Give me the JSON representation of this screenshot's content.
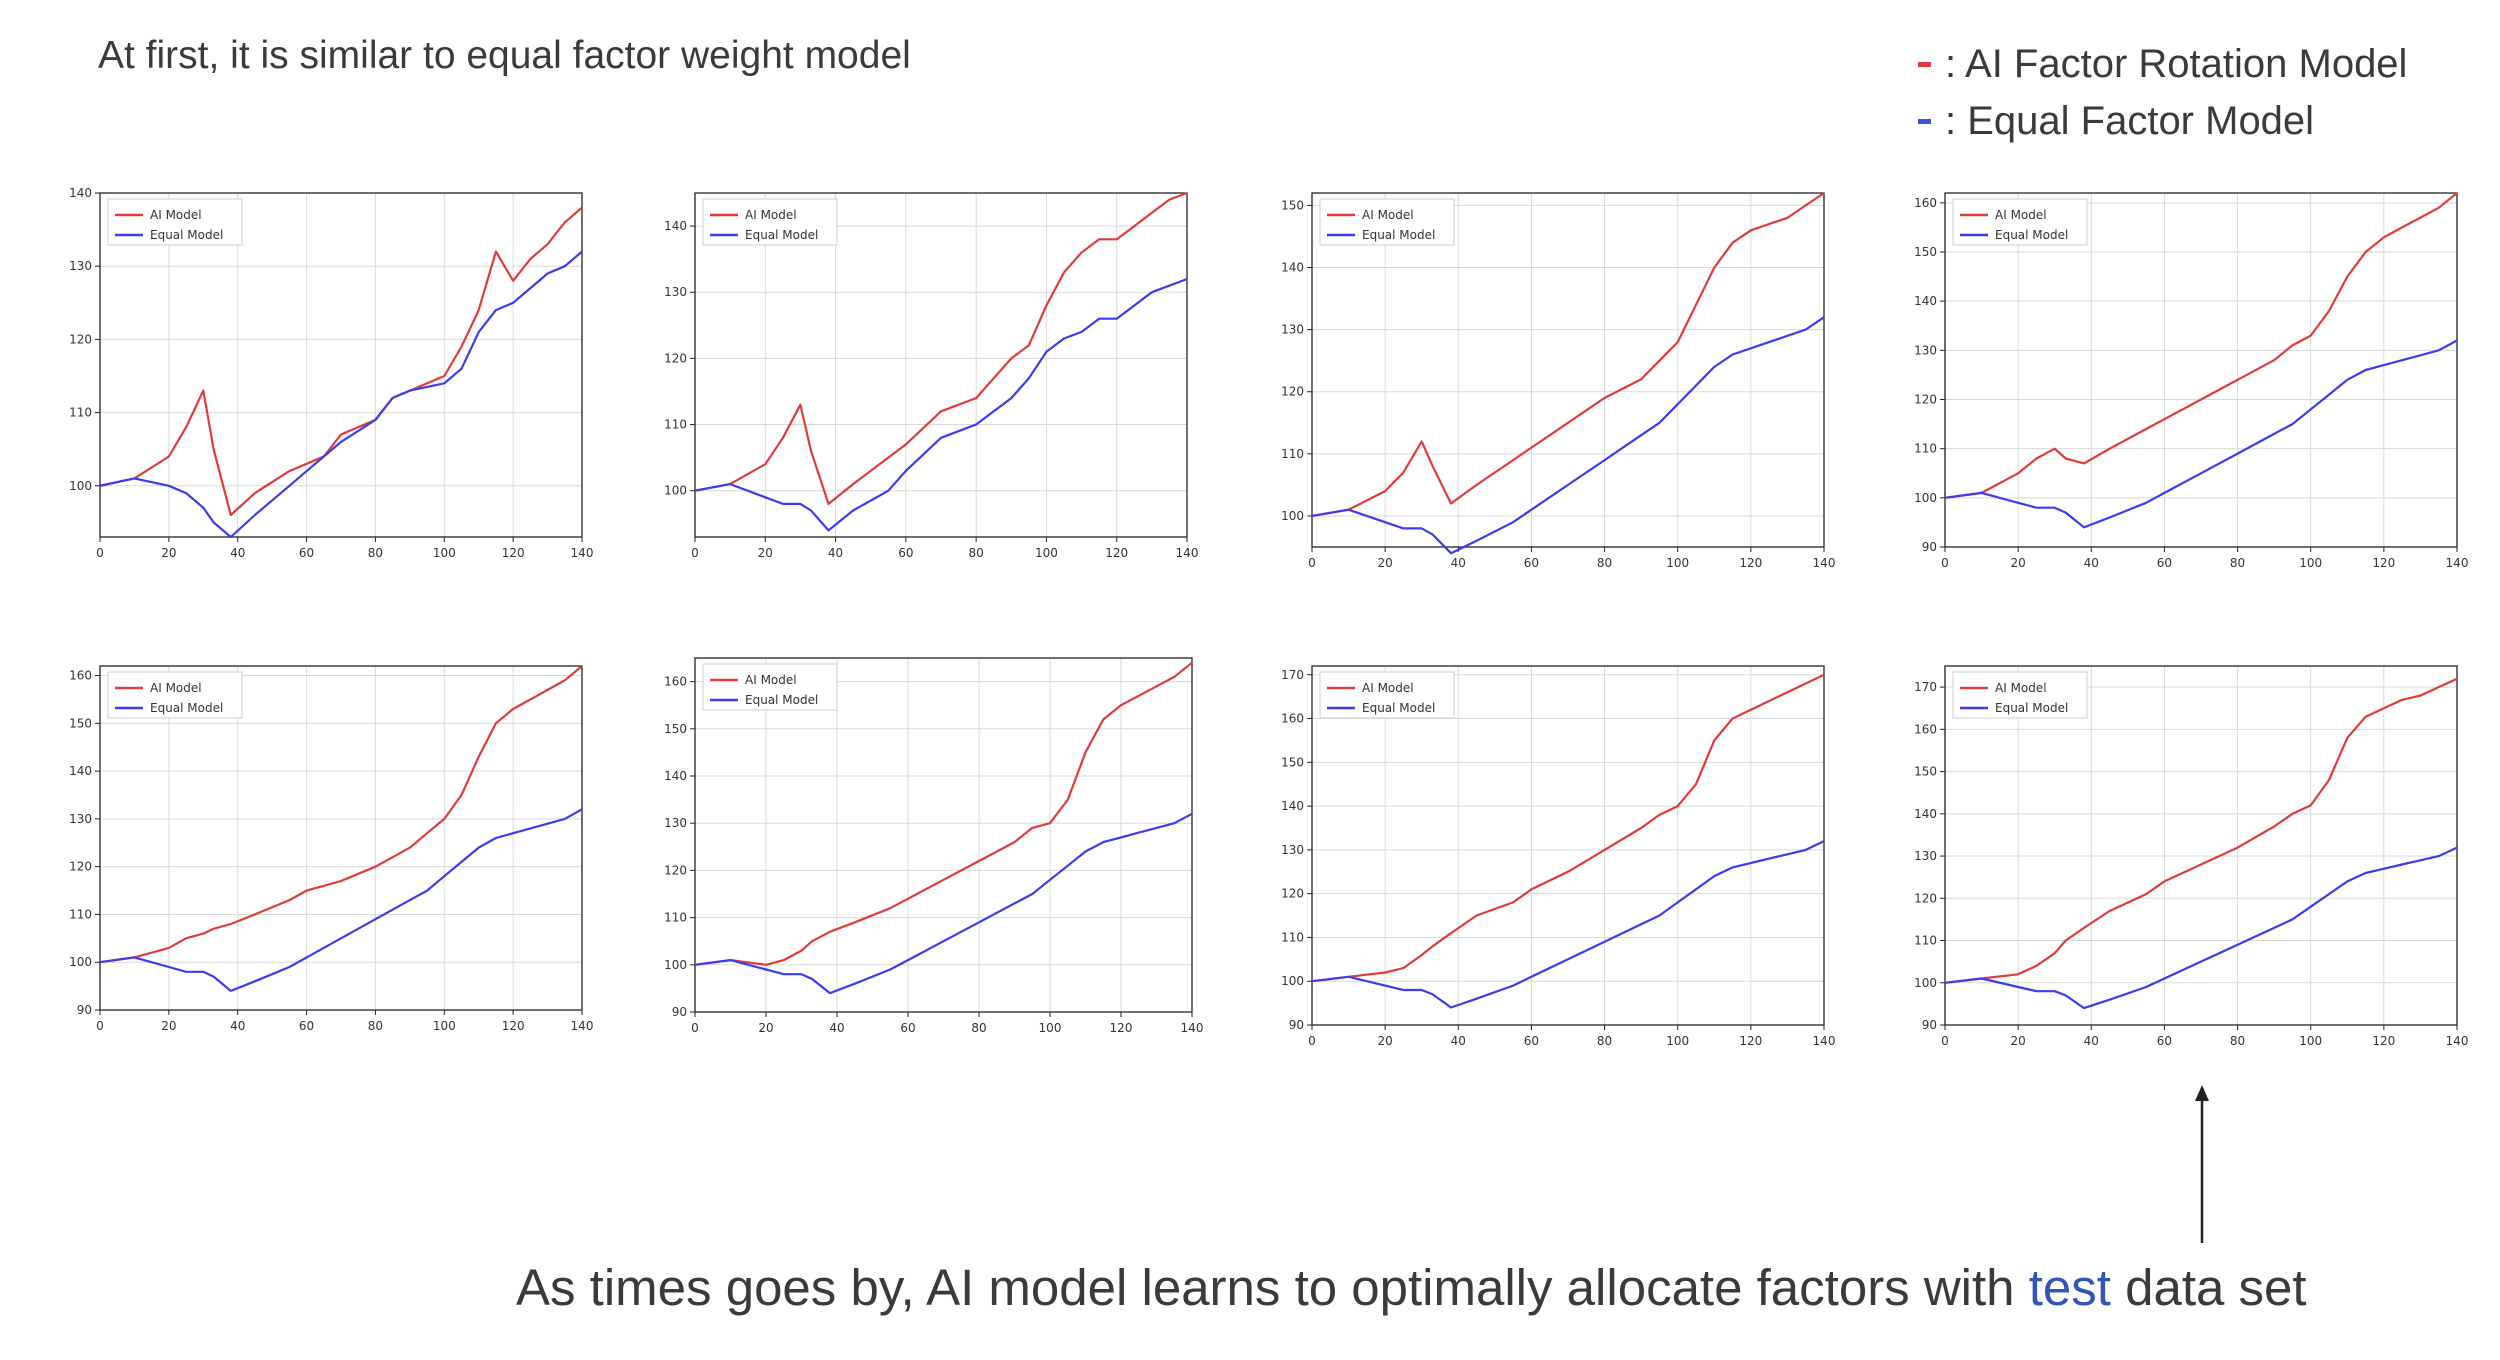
{
  "intro_text": "At first, it is similar to equal factor weight model",
  "legend": [
    {
      "marker_color": "#e03b3b",
      "label": ": AI Factor Rotation Model"
    },
    {
      "marker_color": "#3b55d6",
      "label": ": Equal Factor Model"
    }
  ],
  "conclusion": {
    "before": "As times goes by, AI model learns to optimally allocate factors with ",
    "highlight": "test",
    "after": " data set"
  },
  "colors": {
    "ai": "#e03b3b",
    "equal": "#3b3bf0",
    "highlight": "#3355b8"
  },
  "chart_data": [
    {
      "type": "line",
      "xlim": [
        0,
        140
      ],
      "ylim": [
        93,
        140
      ],
      "xticks": [
        0,
        20,
        40,
        60,
        80,
        100,
        120,
        140
      ],
      "yticks": [
        100,
        110,
        120,
        130,
        140
      ],
      "legend": [
        "AI Model",
        "Equal Model"
      ],
      "legend_position": "top-left",
      "grid": true,
      "x": [
        0,
        10,
        20,
        25,
        30,
        33,
        38,
        45,
        55,
        60,
        65,
        70,
        80,
        85,
        90,
        100,
        105,
        110,
        115,
        120,
        125,
        130,
        135,
        140
      ],
      "series": [
        {
          "name": "AI Model",
          "values": [
            100,
            101,
            104,
            108,
            113,
            105,
            96,
            99,
            102,
            103,
            104,
            107,
            109,
            112,
            113,
            115,
            119,
            124,
            132,
            128,
            131,
            133,
            136,
            138
          ]
        },
        {
          "name": "Equal Model",
          "values": [
            100,
            101,
            100,
            99,
            97,
            95,
            93,
            96,
            100,
            102,
            104,
            106,
            109,
            112,
            113,
            114,
            116,
            121,
            124,
            125,
            127,
            129,
            130,
            132
          ]
        }
      ]
    },
    {
      "type": "line",
      "xlim": [
        0,
        140
      ],
      "ylim": [
        93,
        145
      ],
      "xticks": [
        0,
        20,
        40,
        60,
        80,
        100,
        120,
        140
      ],
      "yticks": [
        100,
        110,
        120,
        130,
        140
      ],
      "legend": [
        "AI Model",
        "Equal Model"
      ],
      "legend_position": "top-left",
      "grid": true,
      "x": [
        0,
        10,
        20,
        25,
        30,
        33,
        38,
        45,
        55,
        60,
        70,
        80,
        90,
        95,
        100,
        105,
        110,
        115,
        120,
        125,
        130,
        135,
        140
      ],
      "series": [
        {
          "name": "AI Model",
          "values": [
            100,
            101,
            104,
            108,
            113,
            106,
            98,
            101,
            105,
            107,
            112,
            114,
            120,
            122,
            128,
            133,
            136,
            138,
            138,
            140,
            142,
            144,
            145
          ]
        },
        {
          "name": "Equal Model",
          "values": [
            100,
            101,
            99,
            98,
            98,
            97,
            94,
            97,
            100,
            103,
            108,
            110,
            114,
            117,
            121,
            123,
            124,
            126,
            126,
            128,
            130,
            131,
            132
          ]
        }
      ]
    },
    {
      "type": "line",
      "xlim": [
        0,
        140
      ],
      "ylim": [
        95,
        152
      ],
      "xticks": [
        0,
        20,
        40,
        60,
        80,
        100,
        120,
        140
      ],
      "yticks": [
        100,
        110,
        120,
        130,
        140,
        150
      ],
      "legend": [
        "AI Model",
        "Equal Model"
      ],
      "legend_position": "top-left",
      "grid": true,
      "x": [
        0,
        10,
        20,
        25,
        30,
        33,
        38,
        45,
        55,
        60,
        70,
        80,
        90,
        95,
        100,
        105,
        110,
        115,
        120,
        125,
        130,
        135,
        140
      ],
      "series": [
        {
          "name": "AI Model",
          "values": [
            100,
            101,
            104,
            107,
            112,
            108,
            102,
            105,
            109,
            111,
            115,
            119,
            122,
            125,
            128,
            134,
            140,
            144,
            146,
            147,
            148,
            150,
            152
          ]
        },
        {
          "name": "Equal Model",
          "values": [
            100,
            101,
            99,
            98,
            98,
            97,
            94,
            96,
            99,
            101,
            105,
            109,
            113,
            115,
            118,
            121,
            124,
            126,
            127,
            128,
            129,
            130,
            132
          ]
        }
      ]
    },
    {
      "type": "line",
      "xlim": [
        0,
        140
      ],
      "ylim": [
        90,
        162
      ],
      "xticks": [
        0,
        20,
        40,
        60,
        80,
        100,
        120,
        140
      ],
      "yticks": [
        90,
        100,
        110,
        120,
        130,
        140,
        150,
        160
      ],
      "legend": [
        "AI Model",
        "Equal Model"
      ],
      "legend_position": "top-left",
      "grid": true,
      "x": [
        0,
        10,
        20,
        25,
        30,
        33,
        38,
        45,
        55,
        60,
        70,
        80,
        90,
        95,
        100,
        105,
        110,
        115,
        120,
        125,
        130,
        135,
        140
      ],
      "series": [
        {
          "name": "AI Model",
          "values": [
            100,
            101,
            105,
            108,
            110,
            108,
            107,
            110,
            114,
            116,
            120,
            124,
            128,
            131,
            133,
            138,
            145,
            150,
            153,
            155,
            157,
            159,
            162
          ]
        },
        {
          "name": "Equal Model",
          "values": [
            100,
            101,
            99,
            98,
            98,
            97,
            94,
            96,
            99,
            101,
            105,
            109,
            113,
            115,
            118,
            121,
            124,
            126,
            127,
            128,
            129,
            130,
            132
          ]
        }
      ]
    },
    {
      "type": "line",
      "xlim": [
        0,
        140
      ],
      "ylim": [
        90,
        162
      ],
      "xticks": [
        0,
        20,
        40,
        60,
        80,
        100,
        120,
        140
      ],
      "yticks": [
        90,
        100,
        110,
        120,
        130,
        140,
        150,
        160
      ],
      "legend": [
        "AI Model",
        "Equal Model"
      ],
      "legend_position": "top-left",
      "grid": true,
      "x": [
        0,
        10,
        20,
        25,
        30,
        33,
        38,
        45,
        55,
        60,
        70,
        80,
        90,
        95,
        100,
        105,
        110,
        115,
        120,
        125,
        130,
        135,
        140
      ],
      "series": [
        {
          "name": "AI Model",
          "values": [
            100,
            101,
            103,
            105,
            106,
            107,
            108,
            110,
            113,
            115,
            117,
            120,
            124,
            127,
            130,
            135,
            143,
            150,
            153,
            155,
            157,
            159,
            162
          ]
        },
        {
          "name": "Equal Model",
          "values": [
            100,
            101,
            99,
            98,
            98,
            97,
            94,
            96,
            99,
            101,
            105,
            109,
            113,
            115,
            118,
            121,
            124,
            126,
            127,
            128,
            129,
            130,
            132
          ]
        }
      ]
    },
    {
      "type": "line",
      "xlim": [
        0,
        140
      ],
      "ylim": [
        90,
        165
      ],
      "xticks": [
        0,
        20,
        40,
        60,
        80,
        100,
        120,
        140
      ],
      "yticks": [
        90,
        100,
        110,
        120,
        130,
        140,
        150,
        160
      ],
      "legend": [
        "AI Model",
        "Equal Model"
      ],
      "legend_position": "top-left",
      "grid": true,
      "x": [
        0,
        10,
        20,
        25,
        30,
        33,
        38,
        45,
        55,
        60,
        70,
        80,
        90,
        95,
        100,
        105,
        110,
        115,
        120,
        125,
        130,
        135,
        140
      ],
      "series": [
        {
          "name": "AI Model",
          "values": [
            100,
            101,
            100,
            101,
            103,
            105,
            107,
            109,
            112,
            114,
            118,
            122,
            126,
            129,
            130,
            135,
            145,
            152,
            155,
            157,
            159,
            161,
            164
          ]
        },
        {
          "name": "Equal Model",
          "values": [
            100,
            101,
            99,
            98,
            98,
            97,
            94,
            96,
            99,
            101,
            105,
            109,
            113,
            115,
            118,
            121,
            124,
            126,
            127,
            128,
            129,
            130,
            132
          ]
        }
      ]
    },
    {
      "type": "line",
      "xlim": [
        0,
        140
      ],
      "ylim": [
        90,
        172
      ],
      "xticks": [
        0,
        20,
        40,
        60,
        80,
        100,
        120,
        140
      ],
      "yticks": [
        90,
        100,
        110,
        120,
        130,
        140,
        150,
        160,
        170
      ],
      "legend": [
        "AI Model",
        "Equal Model"
      ],
      "legend_position": "top-left",
      "grid": true,
      "x": [
        0,
        10,
        20,
        25,
        30,
        33,
        38,
        45,
        55,
        60,
        70,
        80,
        90,
        95,
        100,
        105,
        110,
        115,
        120,
        125,
        130,
        135,
        140
      ],
      "series": [
        {
          "name": "AI Model",
          "values": [
            100,
            101,
            102,
            103,
            106,
            108,
            111,
            115,
            118,
            121,
            125,
            130,
            135,
            138,
            140,
            145,
            155,
            160,
            162,
            164,
            166,
            168,
            170
          ]
        },
        {
          "name": "Equal Model",
          "values": [
            100,
            101,
            99,
            98,
            98,
            97,
            94,
            96,
            99,
            101,
            105,
            109,
            113,
            115,
            118,
            121,
            124,
            126,
            127,
            128,
            129,
            130,
            132
          ]
        }
      ]
    },
    {
      "type": "line",
      "xlim": [
        0,
        140
      ],
      "ylim": [
        90,
        175
      ],
      "xticks": [
        0,
        20,
        40,
        60,
        80,
        100,
        120,
        140
      ],
      "yticks": [
        90,
        100,
        110,
        120,
        130,
        140,
        150,
        160,
        170
      ],
      "legend": [
        "AI Model",
        "Equal Model"
      ],
      "legend_position": "top-left",
      "grid": true,
      "x": [
        0,
        10,
        20,
        25,
        30,
        33,
        38,
        45,
        55,
        60,
        70,
        80,
        90,
        95,
        100,
        105,
        110,
        115,
        120,
        125,
        130,
        135,
        140
      ],
      "series": [
        {
          "name": "AI Model",
          "values": [
            100,
            101,
            102,
            104,
            107,
            110,
            113,
            117,
            121,
            124,
            128,
            132,
            137,
            140,
            142,
            148,
            158,
            163,
            165,
            167,
            168,
            170,
            172
          ]
        },
        {
          "name": "Equal Model",
          "values": [
            100,
            101,
            99,
            98,
            98,
            97,
            94,
            96,
            99,
            101,
            105,
            109,
            113,
            115,
            118,
            121,
            124,
            126,
            127,
            128,
            129,
            130,
            132
          ]
        }
      ]
    }
  ]
}
